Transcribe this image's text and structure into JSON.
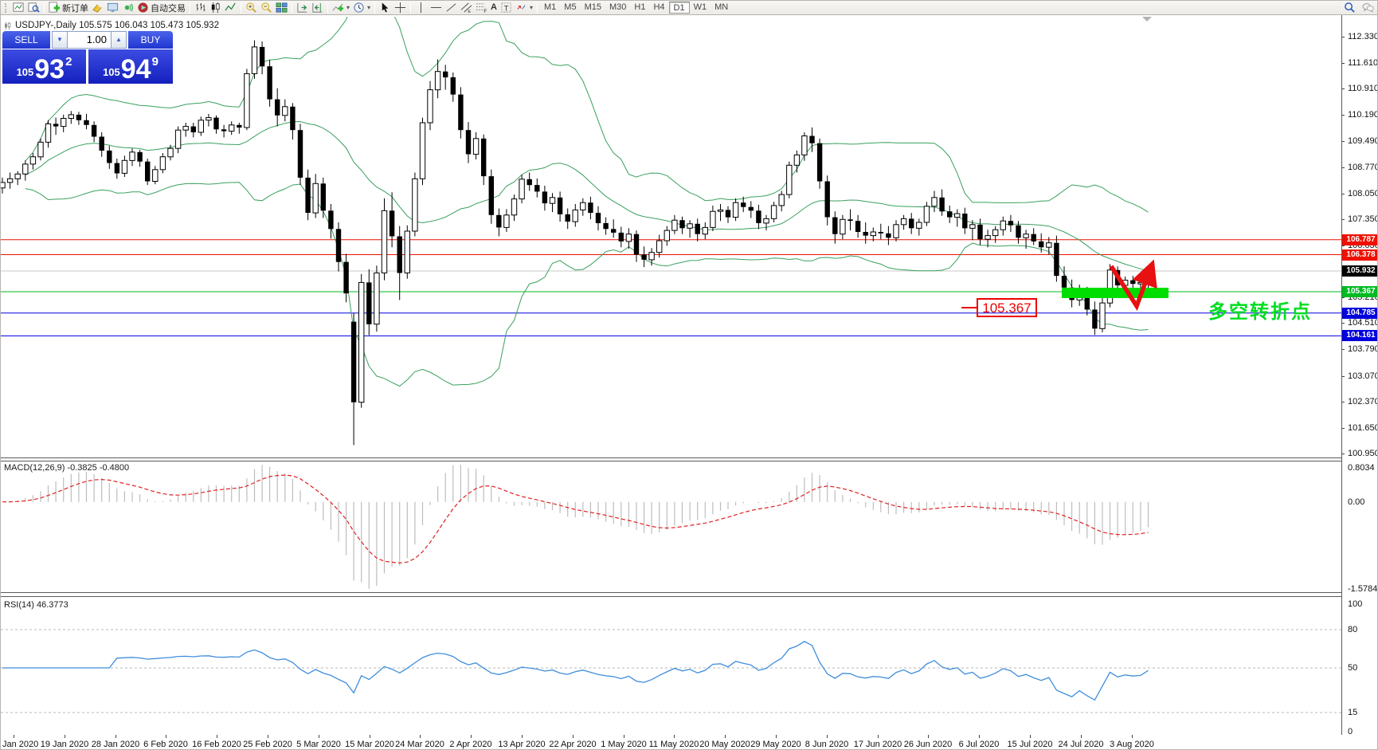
{
  "toolbar": {
    "new_order": "新订单",
    "auto_trading": "自动交易",
    "timeframes": [
      {
        "label": "M1",
        "active": false
      },
      {
        "label": "M5",
        "active": false
      },
      {
        "label": "M15",
        "active": false
      },
      {
        "label": "M30",
        "active": false
      },
      {
        "label": "H1",
        "active": false
      },
      {
        "label": "H4",
        "active": false
      },
      {
        "label": "D1",
        "active": true
      },
      {
        "label": "W1",
        "active": false
      },
      {
        "label": "MN",
        "active": false
      }
    ]
  },
  "chart": {
    "title": "USDJPY-,Daily 105.575 106.043 105.473 105.932"
  },
  "panel": {
    "sell_label": "SELL",
    "buy_label": "BUY",
    "volume": "1.00",
    "sell": {
      "prefix": "105",
      "big": "93",
      "sup": "2"
    },
    "buy": {
      "prefix": "105",
      "big": "94",
      "sup": "9"
    }
  },
  "annotations": {
    "level_label": "105.367",
    "note": "多空转折点"
  },
  "labels": {
    "macd": "MACD(12,26,9) -0.3825 -0.4800",
    "rsi": "RSI(14) 46.3773"
  },
  "chart_data": {
    "type": "candlestick",
    "symbol": "USDJPY-",
    "period": "Daily",
    "current_ohlc": {
      "open": 105.575,
      "high": 106.043,
      "low": 105.473,
      "close": 105.932
    },
    "y_axis": {
      "max": 112.33,
      "min": 100.95,
      "ticks": [
        112.33,
        111.61,
        110.91,
        110.19,
        109.49,
        108.77,
        108.05,
        107.35,
        106.63,
        105.92,
        105.21,
        104.51,
        103.79,
        103.07,
        102.37,
        101.65,
        100.95
      ]
    },
    "hlines": [
      {
        "price": 106.787,
        "color": "#ee1100",
        "tag_bg": "#ee1100",
        "label": "106.787"
      },
      {
        "price": 106.378,
        "color": "#ee1100",
        "tag_bg": "#ee1100",
        "label": "106.378"
      },
      {
        "price": 105.932,
        "color": "#c8c8c8",
        "tag_bg": "#000000",
        "label": "105.932"
      },
      {
        "price": 105.367,
        "color": "#00bb22",
        "tag_bg": "#00bb22",
        "label": "105.367"
      },
      {
        "price": 104.785,
        "color": "#0000dd",
        "tag_bg": "#0000dd",
        "label": "104.785"
      },
      {
        "price": 104.161,
        "color": "#0000dd",
        "tag_bg": "#0000dd",
        "label": "104.161"
      }
    ],
    "x_axis": {
      "labels": [
        "Jan 2020",
        "19 Jan 2020",
        "28 Jan 2020",
        "6 Feb 2020",
        "16 Feb 2020",
        "25 Feb 2020",
        "5 Mar 2020",
        "15 Mar 2020",
        "24 Mar 2020",
        "2 Apr 2020",
        "13 Apr 2020",
        "22 Apr 2020",
        "1 May 2020",
        "11 May 2020",
        "20 May 2020",
        "29 May 2020",
        "8 Jun 2020",
        "17 Jun 2020",
        "26 Jun 2020",
        "6 Jul 2020",
        "15 Jul 2020",
        "24 Jul 2020",
        "3 Aug 2020"
      ]
    },
    "indicators": {
      "bollinger": {
        "period": 20,
        "deviation": 2,
        "color": "#3aa05f"
      },
      "macd": {
        "fast": 12,
        "slow": 26,
        "signal": 9,
        "value": -0.3825,
        "signal_value": -0.48,
        "axis": {
          "max": "0.8034",
          "zero": "0.00",
          "min": "-1.5784"
        },
        "hist_color": "#bdbdbd",
        "signal_color": "#e02020"
      },
      "rsi": {
        "period": 14,
        "value": 46.3773,
        "levels": [
          80,
          50,
          15
        ],
        "axis": [
          "100",
          "80",
          "50",
          "15",
          "0"
        ],
        "color": "#3f8edc"
      }
    },
    "ohlc": [
      [
        108.2,
        108.48,
        108.05,
        108.35
      ],
      [
        108.35,
        108.62,
        108.18,
        108.45
      ],
      [
        108.45,
        108.66,
        108.28,
        108.58
      ],
      [
        108.58,
        108.95,
        108.4,
        108.85
      ],
      [
        108.85,
        109.15,
        108.7,
        109.05
      ],
      [
        109.05,
        109.55,
        108.95,
        109.45
      ],
      [
        109.45,
        110.05,
        109.3,
        109.95
      ],
      [
        109.95,
        110.12,
        109.65,
        109.88
      ],
      [
        109.88,
        110.2,
        109.72,
        110.1
      ],
      [
        110.1,
        110.3,
        109.95,
        110.2
      ],
      [
        110.2,
        110.28,
        109.92,
        110.05
      ],
      [
        110.05,
        110.22,
        109.8,
        109.92
      ],
      [
        109.92,
        110.02,
        109.45,
        109.6
      ],
      [
        109.6,
        109.72,
        109.05,
        109.22
      ],
      [
        109.22,
        109.35,
        108.72,
        108.88
      ],
      [
        108.88,
        109.0,
        108.45,
        108.6
      ],
      [
        108.6,
        109.08,
        108.5,
        108.95
      ],
      [
        108.95,
        109.28,
        108.8,
        109.18
      ],
      [
        109.18,
        109.24,
        108.78,
        108.92
      ],
      [
        108.92,
        109.0,
        108.28,
        108.38
      ],
      [
        108.38,
        108.8,
        108.3,
        108.7
      ],
      [
        108.7,
        109.15,
        108.6,
        109.05
      ],
      [
        109.05,
        109.38,
        108.95,
        109.28
      ],
      [
        109.28,
        109.88,
        109.15,
        109.78
      ],
      [
        109.78,
        109.98,
        109.6,
        109.88
      ],
      [
        109.88,
        109.98,
        109.58,
        109.72
      ],
      [
        109.72,
        110.15,
        109.62,
        110.05
      ],
      [
        110.05,
        110.22,
        109.88,
        110.12
      ],
      [
        110.12,
        110.18,
        109.68,
        109.8
      ],
      [
        109.8,
        109.92,
        109.58,
        109.75
      ],
      [
        109.75,
        110.02,
        109.65,
        109.92
      ],
      [
        109.92,
        109.98,
        109.68,
        109.85
      ],
      [
        109.85,
        111.45,
        109.78,
        111.32
      ],
      [
        111.32,
        112.23,
        111.18,
        112.05
      ],
      [
        112.05,
        112.2,
        111.3,
        111.52
      ],
      [
        111.52,
        111.7,
        110.42,
        110.62
      ],
      [
        110.62,
        110.92,
        109.88,
        110.18
      ],
      [
        110.18,
        110.62,
        110.02,
        110.42
      ],
      [
        110.42,
        110.52,
        109.52,
        109.78
      ],
      [
        109.78,
        109.95,
        108.28,
        108.48
      ],
      [
        108.48,
        108.7,
        107.32,
        107.52
      ],
      [
        107.52,
        108.58,
        107.38,
        108.32
      ],
      [
        108.32,
        108.48,
        107.38,
        107.58
      ],
      [
        107.58,
        107.76,
        106.82,
        107.08
      ],
      [
        107.08,
        107.26,
        105.92,
        106.18
      ],
      [
        106.18,
        106.4,
        105.08,
        105.32
      ],
      [
        104.55,
        104.78,
        101.18,
        102.35
      ],
      [
        102.35,
        105.85,
        102.2,
        105.62
      ],
      [
        105.62,
        105.98,
        104.18,
        104.48
      ],
      [
        104.48,
        106.08,
        104.28,
        105.88
      ],
      [
        105.88,
        107.92,
        105.68,
        107.58
      ],
      [
        107.58,
        108.08,
        106.58,
        106.88
      ],
      [
        106.88,
        107.16,
        105.14,
        105.88
      ],
      [
        105.88,
        107.18,
        105.72,
        107.02
      ],
      [
        107.02,
        108.62,
        106.88,
        108.45
      ],
      [
        108.45,
        110.12,
        108.28,
        109.98
      ],
      [
        109.98,
        111.12,
        109.78,
        110.88
      ],
      [
        110.88,
        111.71,
        110.65,
        111.38
      ],
      [
        111.38,
        111.56,
        110.88,
        111.22
      ],
      [
        111.22,
        111.35,
        110.55,
        110.75
      ],
      [
        110.75,
        110.95,
        109.55,
        109.78
      ],
      [
        109.78,
        110.0,
        108.88,
        109.12
      ],
      [
        109.12,
        109.72,
        108.98,
        109.55
      ],
      [
        109.55,
        109.66,
        108.28,
        108.52
      ],
      [
        108.52,
        108.7,
        107.22,
        107.46
      ],
      [
        107.46,
        107.64,
        106.88,
        107.12
      ],
      [
        107.12,
        107.62,
        107.0,
        107.46
      ],
      [
        107.46,
        108.02,
        107.3,
        107.9
      ],
      [
        107.9,
        108.56,
        107.78,
        108.44
      ],
      [
        108.44,
        108.62,
        108.12,
        108.28
      ],
      [
        108.28,
        108.46,
        107.94,
        108.1
      ],
      [
        108.1,
        108.26,
        107.58,
        107.78
      ],
      [
        107.78,
        108.06,
        107.54,
        107.94
      ],
      [
        107.94,
        108.1,
        107.28,
        107.48
      ],
      [
        107.48,
        107.64,
        107.08,
        107.28
      ],
      [
        107.28,
        107.76,
        107.14,
        107.6
      ],
      [
        107.6,
        107.92,
        107.44,
        107.8
      ],
      [
        107.8,
        107.96,
        107.34,
        107.52
      ],
      [
        107.52,
        107.7,
        107.04,
        107.24
      ],
      [
        107.24,
        107.4,
        106.92,
        107.08
      ],
      [
        107.08,
        107.34,
        106.84,
        106.98
      ],
      [
        106.98,
        107.14,
        106.58,
        106.74
      ],
      [
        106.74,
        107.1,
        106.54,
        106.94
      ],
      [
        106.94,
        107.04,
        106.18,
        106.38
      ],
      [
        106.38,
        106.6,
        106.04,
        106.24
      ],
      [
        106.24,
        106.56,
        106.08,
        106.44
      ],
      [
        106.44,
        106.92,
        106.3,
        106.76
      ],
      [
        106.76,
        107.16,
        106.62,
        107.04
      ],
      [
        107.04,
        107.46,
        106.94,
        107.32
      ],
      [
        107.32,
        107.42,
        106.94,
        107.1
      ],
      [
        107.1,
        107.32,
        106.84,
        107.22
      ],
      [
        107.22,
        107.36,
        106.74,
        106.94
      ],
      [
        106.94,
        107.26,
        106.8,
        107.12
      ],
      [
        107.12,
        107.72,
        107.02,
        107.56
      ],
      [
        107.56,
        107.76,
        107.3,
        107.6
      ],
      [
        107.6,
        107.7,
        107.24,
        107.4
      ],
      [
        107.4,
        107.92,
        107.3,
        107.8
      ],
      [
        107.8,
        107.96,
        107.54,
        107.68
      ],
      [
        107.68,
        107.84,
        107.38,
        107.58
      ],
      [
        107.58,
        107.74,
        107.08,
        107.24
      ],
      [
        107.24,
        107.46,
        107.04,
        107.36
      ],
      [
        107.36,
        107.82,
        107.26,
        107.72
      ],
      [
        107.72,
        108.12,
        107.56,
        108.02
      ],
      [
        108.02,
        108.92,
        107.92,
        108.82
      ],
      [
        108.82,
        109.22,
        108.62,
        109.1
      ],
      [
        109.1,
        109.72,
        108.94,
        109.62
      ],
      [
        109.62,
        109.85,
        109.18,
        109.42
      ],
      [
        109.42,
        109.55,
        108.18,
        108.38
      ],
      [
        108.38,
        108.54,
        107.18,
        107.4
      ],
      [
        107.4,
        107.56,
        106.68,
        106.94
      ],
      [
        106.94,
        107.46,
        106.8,
        107.34
      ],
      [
        107.34,
        107.62,
        107.04,
        107.3
      ],
      [
        107.3,
        107.46,
        106.84,
        107.0
      ],
      [
        107.0,
        107.26,
        106.68,
        106.9
      ],
      [
        106.9,
        107.12,
        106.74,
        107.0
      ],
      [
        107.0,
        107.22,
        106.8,
        106.96
      ],
      [
        106.96,
        107.16,
        106.64,
        106.84
      ],
      [
        106.84,
        107.32,
        106.74,
        107.2
      ],
      [
        107.2,
        107.46,
        107.06,
        107.36
      ],
      [
        107.36,
        107.52,
        106.94,
        107.1
      ],
      [
        107.1,
        107.36,
        106.9,
        107.26
      ],
      [
        107.26,
        107.82,
        107.16,
        107.7
      ],
      [
        107.7,
        108.12,
        107.54,
        107.94
      ],
      [
        107.94,
        108.16,
        107.44,
        107.56
      ],
      [
        107.56,
        107.72,
        107.24,
        107.4
      ],
      [
        107.4,
        107.62,
        107.14,
        107.5
      ],
      [
        107.5,
        107.66,
        106.94,
        107.1
      ],
      [
        107.1,
        107.32,
        106.78,
        107.2
      ],
      [
        107.2,
        107.36,
        106.64,
        106.8
      ],
      [
        106.8,
        107.06,
        106.58,
        106.9
      ],
      [
        106.9,
        107.16,
        106.7,
        107.06
      ],
      [
        107.06,
        107.42,
        106.9,
        107.3
      ],
      [
        107.3,
        107.46,
        107.0,
        107.18
      ],
      [
        107.18,
        107.3,
        106.68,
        106.84
      ],
      [
        106.84,
        107.06,
        106.54,
        106.94
      ],
      [
        106.94,
        107.1,
        106.64,
        106.74
      ],
      [
        106.74,
        106.96,
        106.44,
        106.58
      ],
      [
        106.58,
        106.86,
        106.38,
        106.7
      ],
      [
        106.7,
        106.9,
        105.64,
        105.8
      ],
      [
        105.8,
        106.06,
        105.34,
        105.48
      ],
      [
        105.48,
        105.7,
        104.94,
        105.14
      ],
      [
        105.14,
        105.56,
        104.98,
        105.4
      ],
      [
        105.4,
        105.5,
        104.72,
        104.88
      ],
      [
        104.88,
        105.1,
        104.19,
        104.36
      ],
      [
        104.36,
        105.22,
        104.26,
        105.06
      ],
      [
        105.06,
        106.12,
        104.94,
        105.96
      ],
      [
        105.96,
        106.06,
        105.38,
        105.54
      ],
      [
        105.54,
        105.78,
        105.3,
        105.68
      ],
      [
        105.68,
        105.8,
        105.42,
        105.58
      ],
      [
        105.58,
        105.76,
        105.36,
        105.62
      ],
      [
        105.575,
        106.043,
        105.473,
        105.932
      ]
    ],
    "drawings": {
      "support_bar": {
        "color": "#00dd00"
      },
      "arrow": {
        "color": "#e81010"
      }
    }
  }
}
